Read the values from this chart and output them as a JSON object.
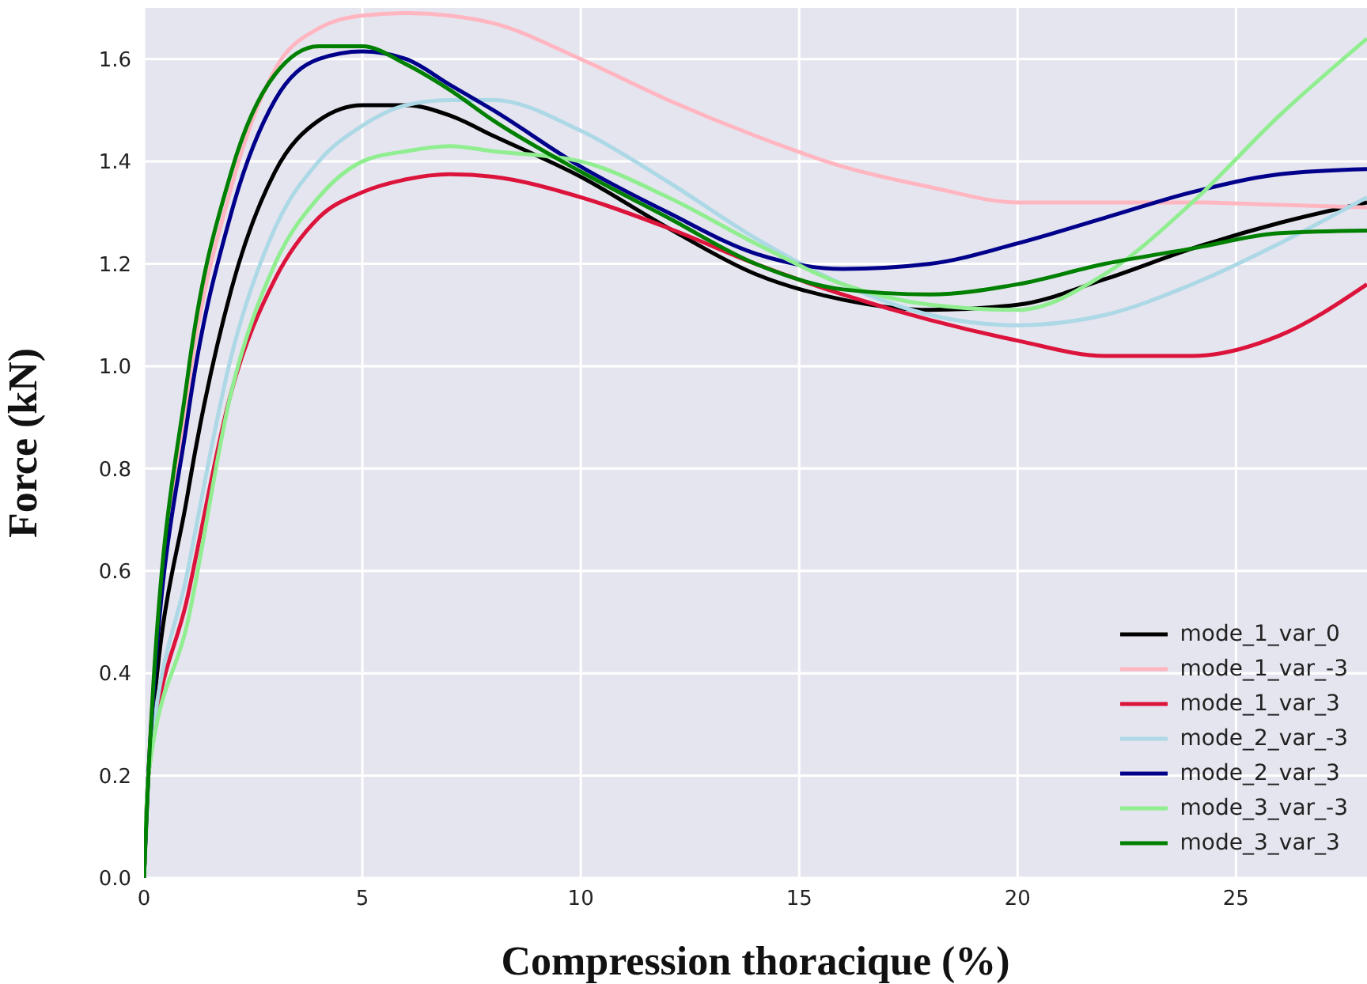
{
  "chart_data": {
    "type": "line",
    "xlabel": "Compression thoracique (%)",
    "ylabel": "Force (kN)",
    "x": [
      0,
      0.1,
      1,
      2,
      3,
      4,
      5,
      6,
      7,
      8,
      10,
      12,
      14,
      16,
      18,
      20,
      22,
      24,
      26,
      28
    ],
    "series": [
      {
        "name": "mode_1_var_0",
        "color": "#000000",
        "values": [
          0,
          0.2,
          0.75,
          1.15,
          1.38,
          1.48,
          1.51,
          1.51,
          1.49,
          1.45,
          1.37,
          1.27,
          1.18,
          1.13,
          1.11,
          1.12,
          1.17,
          1.23,
          1.28,
          1.32
        ]
      },
      {
        "name": "mode_1_var_-3",
        "color": "#ffb6c1",
        "values": [
          0,
          0.2,
          0.95,
          1.35,
          1.58,
          1.66,
          1.685,
          1.69,
          1.685,
          1.67,
          1.6,
          1.52,
          1.45,
          1.39,
          1.35,
          1.32,
          1.32,
          1.32,
          1.315,
          1.31
        ]
      },
      {
        "name": "mode_1_var_3",
        "color": "#dc143c",
        "values": [
          0,
          0.2,
          0.55,
          0.95,
          1.17,
          1.29,
          1.34,
          1.365,
          1.375,
          1.37,
          1.33,
          1.27,
          1.2,
          1.14,
          1.09,
          1.05,
          1.02,
          1.02,
          1.06,
          1.16
        ]
      },
      {
        "name": "mode_2_var_-3",
        "color": "#add8e6",
        "values": [
          0,
          0.2,
          0.6,
          1.02,
          1.27,
          1.4,
          1.47,
          1.51,
          1.52,
          1.52,
          1.46,
          1.36,
          1.25,
          1.16,
          1.1,
          1.08,
          1.1,
          1.16,
          1.24,
          1.33
        ]
      },
      {
        "name": "mode_2_var_3",
        "color": "#00008b",
        "values": [
          0,
          0.2,
          0.9,
          1.3,
          1.52,
          1.6,
          1.615,
          1.6,
          1.55,
          1.5,
          1.39,
          1.3,
          1.22,
          1.19,
          1.2,
          1.24,
          1.29,
          1.34,
          1.375,
          1.385
        ]
      },
      {
        "name": "mode_3_var_-3",
        "color": "#90ee90",
        "values": [
          0,
          0.2,
          0.5,
          0.95,
          1.2,
          1.33,
          1.4,
          1.42,
          1.43,
          1.42,
          1.4,
          1.33,
          1.24,
          1.16,
          1.12,
          1.11,
          1.18,
          1.32,
          1.49,
          1.64
        ]
      },
      {
        "name": "mode_3_var_3",
        "color": "#008000",
        "values": [
          0,
          0.2,
          0.98,
          1.38,
          1.57,
          1.625,
          1.625,
          1.59,
          1.54,
          1.48,
          1.38,
          1.29,
          1.2,
          1.15,
          1.14,
          1.16,
          1.2,
          1.23,
          1.26,
          1.265
        ]
      }
    ],
    "xlim": [
      0,
      28
    ],
    "xticks": [
      0,
      5,
      10,
      15,
      20,
      25
    ],
    "ylim": [
      0,
      1.7
    ],
    "yticks": [
      {
        "value": 0,
        "label": "0.0"
      },
      {
        "value": 0.2,
        "label": "0.2"
      },
      {
        "value": 0.4,
        "label": "0.4"
      },
      {
        "value": 0.6,
        "label": "0.6"
      },
      {
        "value": 0.8,
        "label": "0.8"
      },
      {
        "value": 1,
        "label": "1.0"
      },
      {
        "value": 1.2,
        "label": "1.2"
      },
      {
        "value": 1.4,
        "label": "1.4"
      },
      {
        "value": 1.6,
        "label": "1.6"
      }
    ],
    "grid": true,
    "legend": "bottom right",
    "marker": "none",
    "line_style": "solid"
  }
}
